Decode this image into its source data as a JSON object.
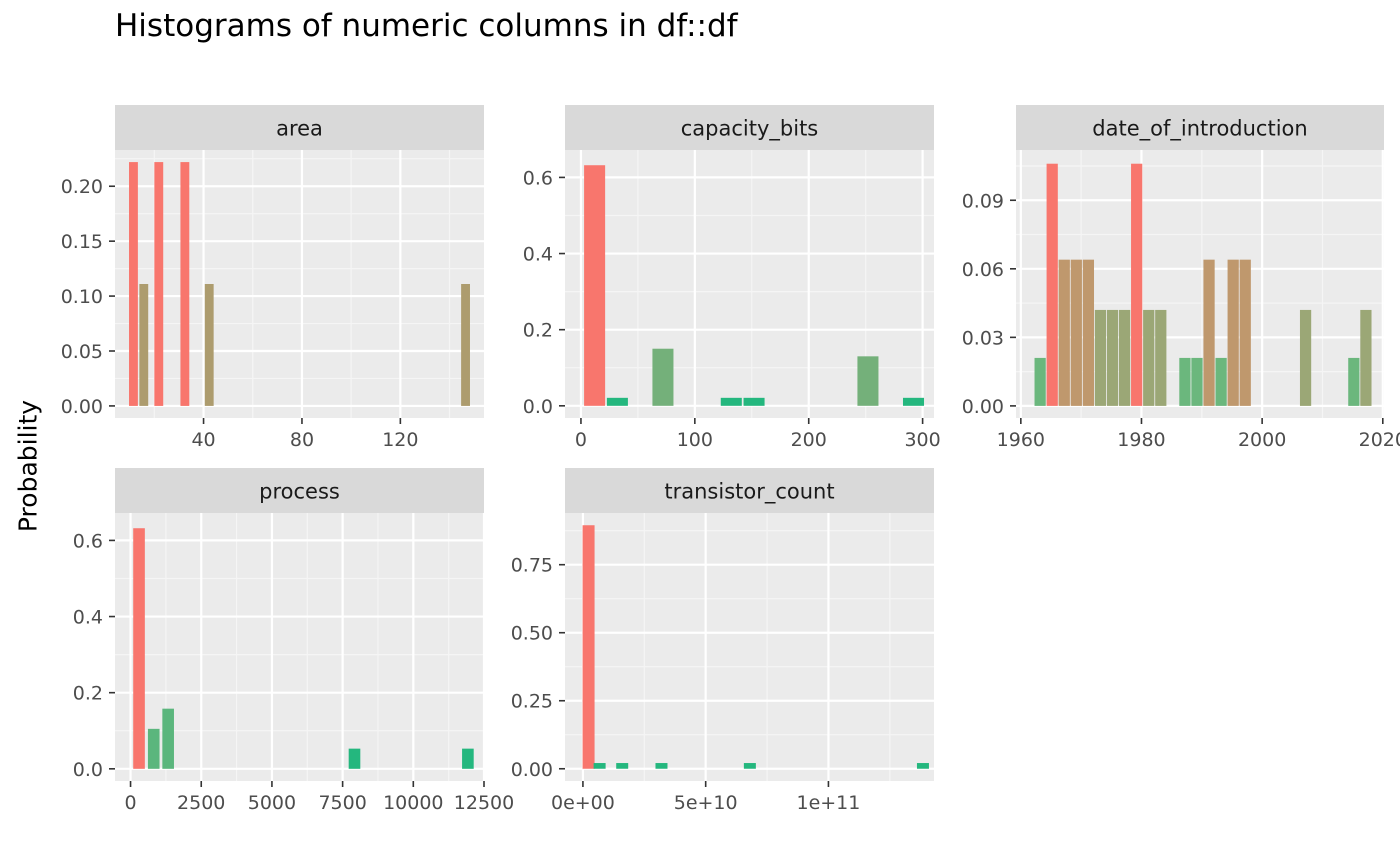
{
  "chart_data": {
    "type": "bar",
    "title": "Histograms of numeric columns in df::df",
    "ylabel": "Probability",
    "panels": [
      {
        "name": "area",
        "xlim": [
          4,
          154
        ],
        "ylim": [
          -0.011,
          0.233
        ],
        "x_ticks": [
          40,
          80,
          120
        ],
        "x_tick_labels": [
          "40",
          "80",
          "120"
        ],
        "y_ticks": [
          0,
          0.05,
          0.1,
          0.15,
          0.2
        ],
        "y_tick_labels": [
          "0.00",
          "0.05",
          "0.10",
          "0.15",
          "0.20"
        ],
        "x": [
          11.5,
          15.7,
          21.8,
          32.4,
          42.3,
          146.5
        ],
        "values": [
          0.222,
          0.111,
          0.222,
          0.222,
          0.111,
          0.111
        ],
        "colors": [
          "#F8766D",
          "#AD9C6E",
          "#F8766D",
          "#F8766D",
          "#AD9C6E",
          "#AD9C6E"
        ]
      },
      {
        "name": "capacity_bits",
        "xlim": [
          -14,
          310
        ],
        "ylim": [
          -0.032,
          0.672
        ],
        "x_ticks": [
          0,
          100,
          200,
          300
        ],
        "x_tick_labels": [
          "0",
          "100",
          "200",
          "300"
        ],
        "y_ticks": [
          0,
          0.2,
          0.4,
          0.6
        ],
        "y_tick_labels": [
          "0.0",
          "0.2",
          "0.4",
          "0.6"
        ],
        "x": [
          12,
          32,
          72,
          132,
          152,
          252,
          292
        ],
        "values": [
          0.632,
          0.021,
          0.15,
          0.021,
          0.021,
          0.13,
          0.021
        ],
        "colors": [
          "#F8766D",
          "#24B77E",
          "#74B07A",
          "#24B77E",
          "#24B77E",
          "#74B07A",
          "#24B77E"
        ]
      },
      {
        "name": "date_of_introduction",
        "xlim": [
          1959.2,
          2020.2
        ],
        "ylim": [
          -0.0053,
          0.112
        ],
        "x_ticks": [
          1960,
          1980,
          2000,
          2020
        ],
        "x_tick_labels": [
          "1960",
          "1980",
          "2000",
          "2020"
        ],
        "y_ticks": [
          0,
          0.03,
          0.06,
          0.09
        ],
        "y_tick_labels": [
          "0.00",
          "0.03",
          "0.06",
          "0.09"
        ],
        "x": [
          1963.2,
          1965.2,
          1967.2,
          1969.2,
          1971.2,
          1973.2,
          1975.2,
          1977.2,
          1979.2,
          1981.2,
          1983.2,
          1987.2,
          1989.2,
          1991.2,
          1993.2,
          1995.2,
          1997.2,
          2007.2,
          2015.2,
          2017.2
        ],
        "values": [
          0.021,
          0.106,
          0.064,
          0.064,
          0.064,
          0.042,
          0.042,
          0.042,
          0.106,
          0.042,
          0.042,
          0.021,
          0.021,
          0.064,
          0.021,
          0.064,
          0.064,
          0.042,
          0.021,
          0.042
        ],
        "colors": [
          "#6BB77D",
          "#F8766D",
          "#BF986D",
          "#BF986D",
          "#BF986D",
          "#9BA776",
          "#9BA776",
          "#9BA776",
          "#F8766D",
          "#9BA776",
          "#9BA776",
          "#6BB77D",
          "#6BB77D",
          "#BF986D",
          "#6BB77D",
          "#BF986D",
          "#BF986D",
          "#9BA776",
          "#6BB77D",
          "#9BA776"
        ]
      },
      {
        "name": "process",
        "xlim": [
          -550,
          12500
        ],
        "ylim": [
          -0.032,
          0.672
        ],
        "x_ticks": [
          0,
          2500,
          5000,
          7500,
          10000,
          12500
        ],
        "x_tick_labels": [
          "0",
          "2500",
          "5000",
          "7500",
          "10000",
          "12500"
        ],
        "y_ticks": [
          0,
          0.2,
          0.4,
          0.6
        ],
        "y_tick_labels": [
          "0.0",
          "0.2",
          "0.4",
          "0.6"
        ],
        "x": [
          300,
          820,
          1330,
          7920,
          11930
        ],
        "values": [
          0.632,
          0.105,
          0.158,
          0.053,
          0.053
        ],
        "colors": [
          "#F8766D",
          "#5BB67D",
          "#5BB67D",
          "#24B77E",
          "#24B77E"
        ]
      },
      {
        "name": "transistor_count",
        "xlim": [
          -7300000000.0,
          143000000000.0
        ],
        "ylim": [
          -0.045,
          0.94
        ],
        "x_ticks": [
          0,
          50000000000.0,
          100000000000.0
        ],
        "x_tick_labels": [
          "0e+00",
          "5e+10",
          "1e+11"
        ],
        "y_ticks": [
          0,
          0.25,
          0.5,
          0.75
        ],
        "y_tick_labels": [
          "0.00",
          "0.25",
          "0.50",
          "0.75"
        ],
        "x": [
          2300000000.0,
          6800000000.0,
          16000000000.0,
          32000000000.0,
          68000000000.0,
          138500000000.0
        ],
        "values": [
          0.895,
          0.021,
          0.021,
          0.021,
          0.021,
          0.021
        ],
        "colors": [
          "#F8766D",
          "#24B77E",
          "#24B77E",
          "#24B77E",
          "#24B77E",
          "#24B77E"
        ]
      }
    ]
  }
}
